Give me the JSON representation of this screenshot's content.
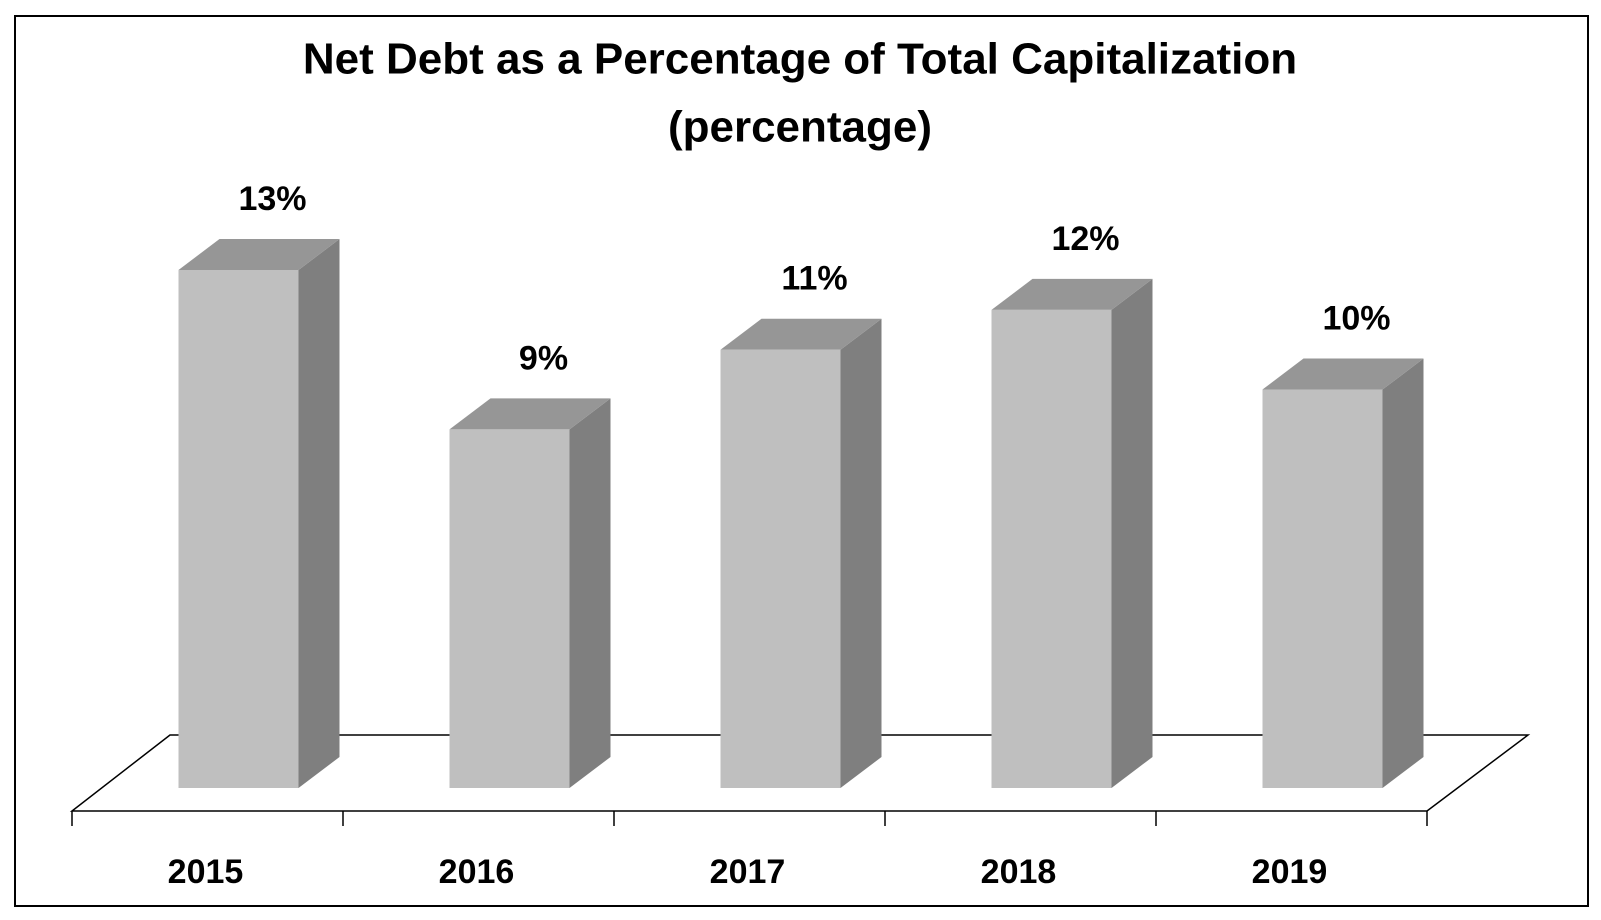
{
  "chart_data": {
    "type": "bar3d",
    "title": "Net Debt as a Percentage of Total Capitalization",
    "subtitle": "(percentage)",
    "categories": [
      "2015",
      "2016",
      "2017",
      "2018",
      "2019"
    ],
    "values": [
      13,
      9,
      11,
      12,
      10
    ],
    "value_labels": [
      "13%",
      "9%",
      "11%",
      "12%",
      "10%"
    ],
    "color": "#bfbfbf"
  }
}
